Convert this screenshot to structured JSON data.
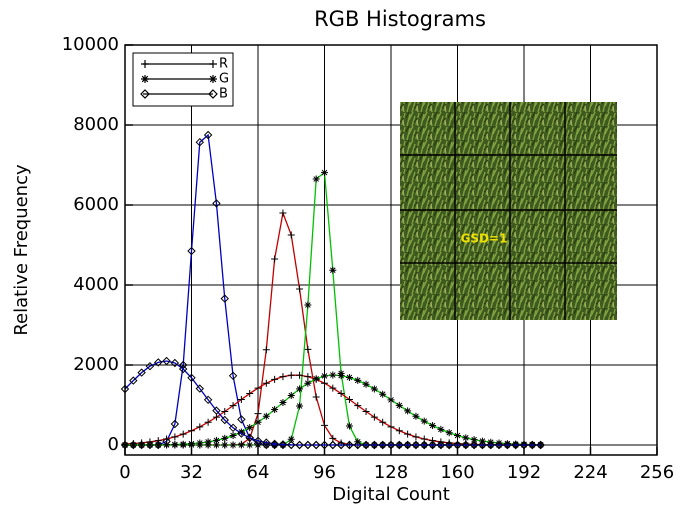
{
  "chart_data": {
    "type": "line",
    "title": "RGB Histograms",
    "xlabel": "Digital Count",
    "ylabel": "Relative Frequency",
    "annotation": "GSD=1",
    "xlim": [
      0,
      256
    ],
    "ylim": [
      -250,
      10000
    ],
    "xticks": [
      0,
      32,
      64,
      96,
      128,
      160,
      192,
      224,
      256
    ],
    "yticks": [
      0,
      2000,
      4000,
      6000,
      8000,
      10000
    ],
    "grid": true,
    "legend": "upper left",
    "x": [
      0,
      4,
      8,
      12,
      16,
      20,
      24,
      28,
      32,
      36,
      40,
      44,
      48,
      52,
      56,
      60,
      64,
      68,
      72,
      76,
      80,
      84,
      88,
      92,
      96,
      100,
      104,
      108,
      112,
      116,
      120,
      124,
      128,
      132,
      136,
      140,
      144,
      148,
      152,
      156,
      160,
      164,
      168,
      172,
      176,
      180,
      184,
      188,
      192,
      196,
      200
    ],
    "series": [
      {
        "name": "R",
        "color": "#c00000",
        "marker": "plus",
        "values": [
          0,
          0,
          0,
          0,
          0,
          0,
          0,
          0,
          0,
          0,
          0,
          0,
          0,
          0,
          20,
          165,
          785,
          2380,
          4650,
          5800,
          5250,
          3900,
          2390,
          1200,
          490,
          165,
          50,
          15,
          0,
          0,
          0,
          0,
          0,
          0,
          0,
          0,
          0,
          0,
          0,
          0,
          0,
          0,
          0,
          0,
          0,
          0,
          0,
          0,
          0,
          0,
          0
        ]
      },
      {
        "name": "G",
        "color": "#00c000",
        "marker": "asterisk",
        "values": [
          0,
          0,
          0,
          0,
          0,
          0,
          0,
          0,
          0,
          0,
          0,
          0,
          0,
          0,
          0,
          0,
          0,
          0,
          0,
          0,
          144,
          975,
          3500,
          6650,
          6810,
          4370,
          1790,
          475,
          80,
          0,
          0,
          0,
          0,
          0,
          0,
          0,
          0,
          0,
          0,
          0,
          0,
          0,
          0,
          0,
          0,
          0,
          0,
          0,
          0,
          0,
          0
        ]
      },
      {
        "name": "B",
        "color": "#0000c0",
        "marker": "diamond",
        "values": [
          0,
          0,
          0,
          0,
          0,
          90,
          525,
          2000,
          4850,
          7570,
          7750,
          6040,
          3660,
          1730,
          640,
          180,
          40,
          0,
          0,
          0,
          0,
          0,
          0,
          0,
          0,
          0,
          0,
          0,
          0,
          0,
          0,
          0,
          0,
          0,
          0,
          0,
          0,
          0,
          0,
          0,
          0,
          0,
          0,
          0,
          0,
          0,
          0,
          0,
          0,
          0,
          0
        ]
      },
      {
        "name": "R",
        "color": "#c00000",
        "marker": "plus",
        "values": [
          24,
          36,
          53,
          77,
          108,
          150,
          204,
          272,
          356,
          454,
          569,
          697,
          837,
          984,
          1137,
          1286,
          1423,
          1544,
          1641,
          1710,
          1745,
          1745,
          1710,
          1641,
          1544,
          1423,
          1286,
          1137,
          984,
          837,
          697,
          569,
          454,
          356,
          272,
          204,
          150,
          108,
          77,
          53,
          36,
          24,
          16,
          10,
          6,
          4,
          2,
          1,
          0,
          0,
          0
        ]
      },
      {
        "name": "G",
        "color": "#00c000",
        "marker": "asterisk",
        "values": [
          0,
          1,
          2,
          3,
          5,
          8,
          12,
          20,
          33,
          50,
          77,
          115,
          167,
          237,
          326,
          435,
          569,
          719,
          886,
          1061,
          1237,
          1402,
          1544,
          1655,
          1726,
          1750,
          1734,
          1688,
          1615,
          1518,
          1401,
          1270,
          1128,
          990,
          852,
          718,
          597,
          486,
          390,
          307,
          237,
          179,
          134,
          98,
          70,
          50,
          35,
          24,
          16,
          10,
          6
        ]
      },
      {
        "name": "B",
        "color": "#0000c0",
        "marker": "diamond",
        "values": [
          1400,
          1610,
          1810,
          1970,
          2065,
          2100,
          2050,
          1900,
          1680,
          1410,
          1130,
          860,
          625,
          430,
          285,
          180,
          105,
          60,
          30,
          15,
          5,
          0,
          0,
          0,
          0,
          0,
          0,
          0,
          0,
          0,
          0,
          0,
          0,
          0,
          0,
          0,
          0,
          0,
          0,
          0,
          0,
          0,
          0,
          0,
          0,
          0,
          0,
          0,
          0,
          0,
          0
        ]
      }
    ]
  }
}
